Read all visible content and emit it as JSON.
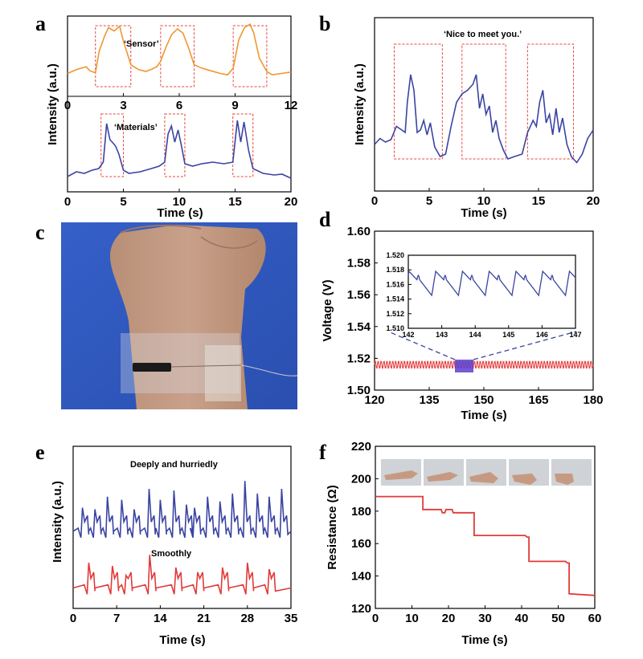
{
  "colors": {
    "orange": "#f0962e",
    "blue": "#3a44a2",
    "red": "#e23a3a",
    "box": "#e8473f"
  },
  "panel_letters": {
    "a": "a",
    "b": "b",
    "c": "c",
    "d": "d",
    "e": "e",
    "f": "f"
  },
  "chart_data": [
    {
      "id": "a_top",
      "type": "line",
      "ylabel": "Intensity (a.u.)",
      "xlim": [
        0,
        12
      ],
      "x_ticks": [
        "0",
        "3",
        "6",
        "9",
        "12"
      ],
      "annotation": "‘Sensor’",
      "highlight_boxes": [
        [
          1.5,
          3.4
        ],
        [
          5.0,
          6.8
        ],
        [
          8.9,
          10.7
        ]
      ],
      "series": [
        {
          "color": "orange",
          "x": [
            0,
            0.5,
            1,
            1.2,
            1.5,
            1.7,
            2.0,
            2.2,
            2.5,
            2.8,
            3.0,
            3.4,
            3.8,
            4.2,
            4.5,
            4.8,
            5.0,
            5.3,
            5.6,
            5.9,
            6.2,
            6.5,
            6.8,
            7.2,
            7.7,
            8.2,
            8.6,
            8.9,
            9.2,
            9.5,
            9.8,
            10.0,
            10.3,
            10.7,
            11.0,
            11.5,
            12
          ],
          "y": [
            0.22,
            0.28,
            0.32,
            0.26,
            0.23,
            0.55,
            0.78,
            0.9,
            0.85,
            0.92,
            0.7,
            0.35,
            0.28,
            0.25,
            0.28,
            0.32,
            0.4,
            0.62,
            0.8,
            0.88,
            0.82,
            0.6,
            0.35,
            0.3,
            0.26,
            0.22,
            0.2,
            0.3,
            0.72,
            0.9,
            0.95,
            0.82,
            0.45,
            0.25,
            0.2,
            0.22,
            0.24
          ]
        }
      ]
    },
    {
      "id": "a_bottom",
      "type": "line",
      "xlabel": "Time (s)",
      "xlim": [
        0,
        20
      ],
      "x_ticks": [
        "0",
        "5",
        "10",
        "15",
        "20"
      ],
      "annotation": "‘Materials’",
      "highlight_boxes": [
        [
          3.0,
          5.0
        ],
        [
          8.7,
          10.5
        ],
        [
          14.8,
          16.6
        ]
      ],
      "series": [
        {
          "color": "blue",
          "x": [
            0,
            0.8,
            1.5,
            2.2,
            2.8,
            3.2,
            3.5,
            3.8,
            4.0,
            4.3,
            4.6,
            5.0,
            5.5,
            6.5,
            7.5,
            8.2,
            8.7,
            9.0,
            9.3,
            9.6,
            9.9,
            10.2,
            10.5,
            11.2,
            12.0,
            13.0,
            14.0,
            14.8,
            15.2,
            15.5,
            15.8,
            16.2,
            16.6,
            17.5,
            18.5,
            19.2,
            20
          ],
          "y": [
            0.12,
            0.18,
            0.16,
            0.2,
            0.22,
            0.3,
            0.78,
            0.58,
            0.55,
            0.5,
            0.4,
            0.2,
            0.16,
            0.18,
            0.22,
            0.25,
            0.3,
            0.65,
            0.75,
            0.55,
            0.7,
            0.5,
            0.28,
            0.25,
            0.28,
            0.3,
            0.28,
            0.3,
            0.82,
            0.55,
            0.8,
            0.45,
            0.22,
            0.16,
            0.14,
            0.15,
            0.1
          ]
        }
      ]
    },
    {
      "id": "b",
      "type": "line",
      "ylabel": "Intensity (a.u.)",
      "xlabel": "Time (s)",
      "xlim": [
        0,
        20
      ],
      "x_ticks": [
        "0",
        "5",
        "10",
        "15",
        "20"
      ],
      "annotation": "‘Nice to meet you.’",
      "highlight_boxes": [
        [
          1.8,
          6.2
        ],
        [
          8.0,
          12.0
        ],
        [
          14.0,
          18.2
        ]
      ],
      "series": [
        {
          "color": "blue",
          "x": [
            0,
            0.5,
            1.0,
            1.5,
            2.0,
            2.5,
            2.8,
            3.0,
            3.3,
            3.6,
            3.9,
            4.2,
            4.5,
            4.8,
            5.1,
            5.5,
            6.0,
            6.5,
            7.0,
            7.5,
            8.0,
            8.5,
            9.0,
            9.3,
            9.6,
            9.9,
            10.2,
            10.5,
            10.8,
            11.1,
            11.4,
            11.8,
            12.2,
            12.8,
            13.5,
            14.0,
            14.5,
            14.8,
            15.1,
            15.4,
            15.7,
            16.0,
            16.3,
            16.6,
            16.9,
            17.2,
            17.6,
            18.0,
            18.5,
            19.0,
            19.5,
            20
          ],
          "y": [
            0.2,
            0.25,
            0.22,
            0.24,
            0.35,
            0.32,
            0.3,
            0.55,
            0.78,
            0.65,
            0.3,
            0.32,
            0.4,
            0.28,
            0.38,
            0.18,
            0.1,
            0.12,
            0.35,
            0.55,
            0.62,
            0.65,
            0.7,
            0.78,
            0.5,
            0.62,
            0.45,
            0.52,
            0.3,
            0.4,
            0.25,
            0.15,
            0.08,
            0.1,
            0.12,
            0.3,
            0.4,
            0.35,
            0.55,
            0.65,
            0.38,
            0.45,
            0.28,
            0.5,
            0.3,
            0.42,
            0.2,
            0.1,
            0.05,
            0.12,
            0.25,
            0.32
          ]
        }
      ]
    },
    {
      "id": "d",
      "type": "line",
      "ylabel": "Voltage (V)",
      "xlabel": "Time (s)",
      "xlim": [
        120,
        180
      ],
      "ylim": [
        1.5,
        1.6
      ],
      "x_ticks": [
        "120",
        "135",
        "150",
        "165",
        "180"
      ],
      "y_ticks": [
        "1.50",
        "1.52",
        "1.54",
        "1.56",
        "1.58",
        "1.60"
      ],
      "series": [
        {
          "color": "red",
          "baseline": 1.516,
          "amplitude": 0.002,
          "period_s": 0.8
        }
      ]
    },
    {
      "id": "d_inset",
      "type": "line",
      "xlim": [
        142,
        147
      ],
      "ylim": [
        1.51,
        1.52
      ],
      "x_ticks": [
        "142",
        "143",
        "144",
        "145",
        "146",
        "147"
      ],
      "y_ticks": [
        "1.510",
        "1.512",
        "1.514",
        "1.516",
        "1.518",
        "1.520"
      ],
      "series": [
        {
          "color": "blue",
          "period_s": 0.8,
          "peak": 1.5178,
          "trough": 1.5145
        }
      ]
    },
    {
      "id": "e",
      "type": "line",
      "ylabel": "Intensity (a.u.)",
      "xlabel": "Time (s)",
      "xlim": [
        0,
        35
      ],
      "x_ticks": [
        "0",
        "7",
        "14",
        "21",
        "28",
        "35"
      ],
      "annotations": [
        "Deeply and hurriedly",
        "Smoothly"
      ],
      "series": [
        {
          "color": "blue",
          "peaks_x": [
            1.5,
            3.5,
            5.5,
            7.8,
            9.8,
            12.2,
            14.0,
            16.2,
            18.2,
            19.5,
            21.6,
            23.6,
            25.6,
            27.6,
            29.6,
            31.5,
            33.5
          ],
          "peaks_y": [
            0.63,
            0.62,
            0.7,
            0.68,
            0.62,
            0.75,
            0.68,
            0.74,
            0.65,
            0.63,
            0.7,
            0.67,
            0.72,
            0.8,
            0.72,
            0.7,
            0.75
          ]
        },
        {
          "color": "red",
          "peaks_x": [
            2.5,
            6.3,
            8.5,
            12.3,
            16.5,
            20.0,
            24.0,
            28.0,
            31.5
          ],
          "peaks_y": [
            0.28,
            0.26,
            0.2,
            0.33,
            0.25,
            0.22,
            0.25,
            0.28,
            0.24
          ]
        }
      ]
    },
    {
      "id": "f",
      "type": "line",
      "ylabel": "Resistance (Ω)",
      "xlabel": "Time (s)",
      "xlim": [
        0,
        60
      ],
      "ylim": [
        120,
        220
      ],
      "x_ticks": [
        "0",
        "10",
        "20",
        "30",
        "40",
        "50",
        "60"
      ],
      "y_ticks": [
        "120",
        "140",
        "160",
        "180",
        "200",
        "220"
      ],
      "series": [
        {
          "color": "red",
          "x": [
            0,
            13,
            13,
            18,
            18.3,
            19,
            19.3,
            21,
            21.3,
            27,
            27,
            41,
            41.5,
            42,
            42,
            52,
            52.5,
            53,
            53,
            60
          ],
          "y": [
            189,
            189,
            181,
            181,
            179,
            179,
            181,
            181,
            179,
            179,
            165,
            165,
            164,
            164,
            149,
            149,
            148,
            148,
            129,
            128
          ]
        }
      ]
    }
  ]
}
